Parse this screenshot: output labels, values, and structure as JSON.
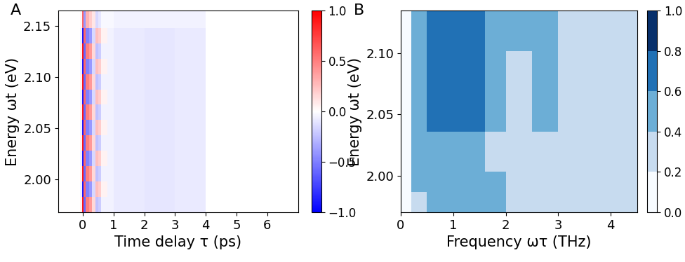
{
  "chart_data": [
    {
      "type": "heatmap",
      "title": "A",
      "x_label": "Time delay τ (ps)",
      "y_label": "Energy ωt (eV)",
      "xlim": [
        -0.8,
        7.0
      ],
      "xticks": [
        0,
        1,
        2,
        3,
        4,
        5,
        6
      ],
      "ylim": [
        1.968,
        2.165
      ],
      "yticks": [
        {
          "value": 2.0,
          "label": "2.00"
        },
        2.05,
        {
          "value": 2.1,
          "label": "2.10"
        },
        2.15
      ],
      "color": "bwr",
      "x_edges": [
        -0.8,
        -0.1,
        -0.03,
        0.03,
        0.1,
        0.2,
        0.3,
        0.4,
        0.5,
        0.6,
        0.8,
        1.0,
        2.0,
        3.0,
        4.0
      ],
      "y_edges": [
        1.968,
        1.983,
        1.998,
        2.013,
        2.028,
        2.043,
        2.058,
        2.073,
        2.088,
        2.103,
        2.118,
        2.133,
        2.148,
        2.165
      ],
      "cells": [
        [
          0.0,
          0.05,
          0.9,
          -0.6,
          0.5,
          0.4,
          0.15,
          -0.25,
          -0.2,
          -0.05,
          -0.05,
          -0.08,
          -0.1,
          -0.08
        ],
        [
          0.0,
          -0.05,
          -0.9,
          0.6,
          -0.5,
          -0.4,
          -0.15,
          0.25,
          0.2,
          0.05,
          -0.05,
          -0.08,
          -0.1,
          -0.08
        ],
        [
          0.0,
          0.05,
          0.9,
          -0.6,
          0.5,
          0.4,
          0.15,
          -0.25,
          -0.2,
          -0.05,
          -0.05,
          -0.08,
          -0.1,
          -0.08
        ],
        [
          0.0,
          -0.05,
          -0.9,
          0.6,
          -0.5,
          -0.4,
          -0.15,
          0.25,
          0.2,
          0.05,
          -0.05,
          -0.08,
          -0.1,
          -0.08
        ],
        [
          0.0,
          0.05,
          0.9,
          -0.6,
          0.5,
          0.4,
          0.15,
          -0.25,
          -0.2,
          -0.05,
          -0.05,
          -0.08,
          -0.1,
          -0.08
        ],
        [
          0.0,
          -0.05,
          -0.9,
          0.6,
          -0.5,
          -0.4,
          -0.15,
          0.25,
          0.2,
          0.05,
          -0.05,
          -0.08,
          -0.1,
          -0.08
        ],
        [
          0.0,
          0.05,
          0.9,
          -0.6,
          0.5,
          0.4,
          0.15,
          -0.25,
          -0.2,
          -0.05,
          -0.05,
          -0.08,
          -0.1,
          -0.08
        ],
        [
          0.0,
          -0.05,
          -0.9,
          0.6,
          -0.5,
          -0.4,
          -0.15,
          0.25,
          0.2,
          0.05,
          -0.05,
          -0.08,
          -0.1,
          -0.08
        ],
        [
          0.0,
          0.05,
          0.9,
          -0.6,
          0.5,
          0.4,
          0.15,
          -0.25,
          -0.2,
          -0.05,
          -0.05,
          -0.08,
          -0.1,
          -0.08
        ],
        [
          0.0,
          -0.05,
          -0.9,
          0.6,
          -0.5,
          -0.4,
          -0.15,
          0.25,
          0.2,
          0.05,
          -0.05,
          -0.08,
          -0.1,
          -0.08
        ],
        [
          0.0,
          0.05,
          0.9,
          -0.6,
          0.5,
          0.4,
          0.15,
          -0.25,
          -0.2,
          -0.05,
          -0.05,
          -0.08,
          -0.1,
          -0.08
        ],
        [
          0.0,
          -0.05,
          -0.9,
          0.6,
          -0.5,
          -0.4,
          -0.15,
          0.25,
          0.2,
          0.05,
          -0.05,
          -0.08,
          -0.1,
          -0.08
        ],
        [
          0.0,
          0.03,
          0.6,
          -0.4,
          0.3,
          0.2,
          0.1,
          -0.15,
          -0.1,
          -0.03,
          -0.03,
          -0.05,
          -0.05,
          -0.05
        ]
      ],
      "colorbar_range": [
        -1.0,
        1.0
      ],
      "colorbar_ticks": [
        {
          "value": -1.0,
          "label": "−1.0"
        },
        {
          "value": -0.5,
          "label": "−0.5"
        },
        0.0,
        0.5,
        1.0
      ]
    },
    {
      "type": "heatmap",
      "title": "B",
      "x_label": "Frequency ωτ (THz)",
      "y_label": "Energy ωt (eV)",
      "xlim": [
        0.0,
        4.5
      ],
      "xticks": [
        0,
        1,
        2,
        3,
        4
      ],
      "ylim": [
        1.97,
        2.135
      ],
      "yticks": [
        {
          "value": 2.0,
          "label": "2.00"
        },
        2.05,
        {
          "value": 2.1,
          "label": "2.10"
        }
      ],
      "color": "Blues",
      "x_edges": [
        0.0,
        0.2,
        0.5,
        0.8,
        1.2,
        1.6,
        2.0,
        2.5,
        3.0,
        3.5,
        4.0,
        4.5
      ],
      "y_edges": [
        1.97,
        1.9865,
        2.003,
        2.0195,
        2.036,
        2.0525,
        2.069,
        2.0855,
        2.102,
        2.1185,
        2.135
      ],
      "cells": [
        [
          0.1,
          0.3,
          0.55,
          0.55,
          0.5,
          0.45,
          0.3,
          0.35,
          0.3,
          0.25,
          0.25
        ],
        [
          0.1,
          0.45,
          0.5,
          0.55,
          0.5,
          0.4,
          0.3,
          0.35,
          0.3,
          0.25,
          0.25
        ],
        [
          0.1,
          0.5,
          0.5,
          0.5,
          0.45,
          0.35,
          0.35,
          0.3,
          0.3,
          0.3,
          0.25
        ],
        [
          0.1,
          0.45,
          0.55,
          0.5,
          0.45,
          0.35,
          0.3,
          0.35,
          0.3,
          0.3,
          0.25
        ],
        [
          0.1,
          0.4,
          0.6,
          0.65,
          0.6,
          0.4,
          0.3,
          0.4,
          0.3,
          0.3,
          0.25
        ],
        [
          0.1,
          0.4,
          0.65,
          0.7,
          0.7,
          0.45,
          0.35,
          0.45,
          0.35,
          0.3,
          0.3
        ],
        [
          0.1,
          0.45,
          0.65,
          0.7,
          0.7,
          0.45,
          0.35,
          0.45,
          0.35,
          0.3,
          0.3
        ],
        [
          0.1,
          0.45,
          0.7,
          0.7,
          0.65,
          0.45,
          0.35,
          0.45,
          0.35,
          0.3,
          0.3
        ],
        [
          0.1,
          0.5,
          0.7,
          0.7,
          0.65,
          0.45,
          0.4,
          0.4,
          0.35,
          0.3,
          0.3
        ],
        [
          0.1,
          0.5,
          0.7,
          0.7,
          0.65,
          0.45,
          0.4,
          0.4,
          0.35,
          0.3,
          0.3
        ]
      ],
      "colorbar_range": [
        0.0,
        1.0
      ],
      "colorbar_ticks": [
        0.0,
        0.2,
        0.4,
        0.6,
        0.8,
        1.0
      ]
    }
  ]
}
